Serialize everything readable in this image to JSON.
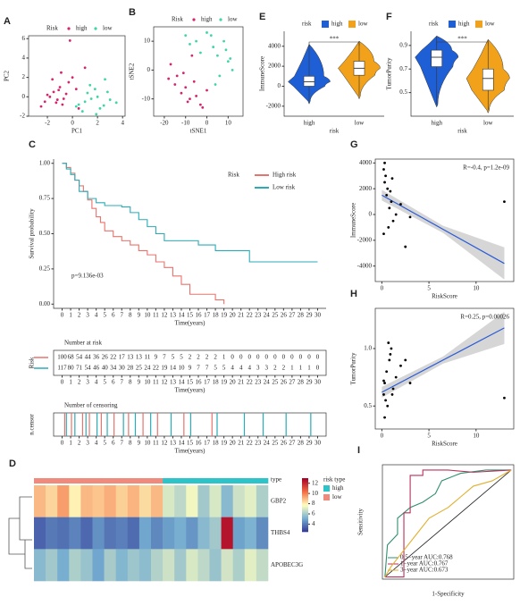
{
  "chart_data": [
    {
      "panel": "A",
      "type": "scatter",
      "legend_title": "Risk",
      "xlabel": "PC1",
      "ylabel": "PC2",
      "xlim": [
        -3.5,
        4.2
      ],
      "ylim": [
        -2,
        6.3
      ],
      "xticks": [
        -2,
        0,
        2,
        4
      ],
      "yticks": [
        -2,
        0,
        2,
        4,
        6
      ],
      "series": [
        {
          "name": "high",
          "color": "#d6246e",
          "x": [
            -2.2,
            -1.8,
            -1.5,
            -1.2,
            -1,
            -0.8,
            -0.5,
            -0.3,
            0,
            0.3,
            -2.5,
            -1.6,
            -0.9,
            -1.3,
            0.5,
            1,
            -0.2,
            -2,
            -0.7,
            -1.1
          ],
          "values": [
            -0.5,
            0,
            0.5,
            -0.3,
            1,
            -0.8,
            0.3,
            1.5,
            2,
            0.8,
            -1,
            1.8,
            2.5,
            -0.6,
            -1.2,
            3,
            5.8,
            0.2,
            -0.2,
            0.7
          ]
        },
        {
          "name": "low",
          "color": "#3ed6a8",
          "x": [
            0.5,
            1,
            1.5,
            2,
            2.5,
            3,
            1.2,
            1.8,
            2.2,
            0.8,
            1.4,
            2.8,
            3.5,
            0.3,
            2.6,
            1.9
          ],
          "values": [
            -0.8,
            -0.5,
            -0.2,
            0,
            -0.9,
            -0.3,
            0.4,
            0.8,
            -1.2,
            -1.5,
            1.2,
            0.5,
            -0.6,
            -1,
            1.8,
            -1.8
          ]
        }
      ]
    },
    {
      "panel": "B",
      "type": "scatter",
      "legend_title": "Risk",
      "xlabel": "tSNE1",
      "ylabel": "tSNE2",
      "xlim": [
        -25,
        17
      ],
      "ylim": [
        -16,
        15
      ],
      "xticks": [
        -20,
        -10,
        0,
        10
      ],
      "yticks": [
        -10,
        0,
        10
      ],
      "series": [
        {
          "name": "high",
          "color": "#d6246e",
          "x": [
            -18,
            -15,
            -12,
            -10,
            -8,
            -5,
            -3,
            0,
            -14,
            -6,
            -9,
            -2,
            -7,
            -17,
            -11
          ],
          "values": [
            -3,
            -5,
            -8,
            -6,
            -10,
            -9,
            -12,
            -7,
            -2,
            -4,
            -11,
            -13,
            5,
            2,
            -1
          ]
        },
        {
          "name": "low",
          "color": "#3ed6a8",
          "x": [
            -10,
            -5,
            0,
            3,
            5,
            8,
            10,
            12,
            -3,
            2,
            6,
            9,
            -8,
            4,
            11
          ],
          "values": [
            12,
            10,
            13,
            8,
            5,
            10,
            3,
            0,
            6,
            12,
            -2,
            7,
            9,
            -5,
            4
          ]
        }
      ]
    },
    {
      "panel": "E",
      "type": "violin",
      "legend_title": "risk",
      "xlabel": "risk",
      "ylabel": "ImmuneScore",
      "annotation": "***",
      "categories": [
        "high",
        "low"
      ],
      "ylim": [
        -3000,
        5500
      ],
      "yticks": [
        -2000,
        0,
        2000,
        4000
      ],
      "boxes": [
        {
          "color": "#1f5fd6",
          "min": -1500,
          "q1": 0,
          "median": 450,
          "q3": 1000,
          "max": 4200
        },
        {
          "color": "#f2a21a",
          "min": -1000,
          "q1": 1100,
          "median": 1800,
          "q3": 2500,
          "max": 4500
        }
      ]
    },
    {
      "panel": "F",
      "type": "violin",
      "legend_title": "risk",
      "xlabel": "risk",
      "ylabel": "TumorPurity",
      "annotation": "***",
      "categories": [
        "high",
        "low"
      ],
      "ylim": [
        0.3,
        1.02
      ],
      "yticks": [
        0.5,
        0.7,
        0.9
      ],
      "boxes": [
        {
          "color": "#1f5fd6",
          "min": 0.4,
          "q1": 0.72,
          "median": 0.8,
          "q3": 0.86,
          "max": 0.98
        },
        {
          "color": "#f2a21a",
          "min": 0.35,
          "q1": 0.52,
          "median": 0.62,
          "q3": 0.7,
          "max": 0.95
        }
      ]
    },
    {
      "panel": "C",
      "type": "line",
      "step": true,
      "legend_title": "Risk",
      "xlabel": "Time(years)",
      "ylabel": "Survival probability",
      "annotation": "p=9.136e-03",
      "xlim": [
        -1,
        31
      ],
      "ylim": [
        -0.03,
        1.03
      ],
      "xticks": [
        0,
        1,
        2,
        3,
        4,
        5,
        6,
        7,
        8,
        9,
        10,
        11,
        12,
        13,
        14,
        15,
        16,
        17,
        18,
        19,
        20,
        21,
        22,
        23,
        24,
        25,
        26,
        27,
        28,
        29,
        30
      ],
      "yticks": [
        {
          "value": 0,
          "label": "0.00"
        },
        {
          "value": 0.25,
          "label": "0.25"
        },
        {
          "value": 0.5,
          "label": "0.50"
        },
        {
          "value": 0.75,
          "label": "0.75"
        },
        {
          "value": 1,
          "label": "1.00"
        }
      ],
      "series": [
        {
          "name": "High risk",
          "color": "#e8736c",
          "x": [
            0,
            0.5,
            1,
            1.5,
            2,
            2.5,
            3,
            3.5,
            4,
            4.5,
            5,
            6,
            7,
            8,
            9,
            10,
            11,
            12,
            13,
            14,
            15,
            16,
            17,
            18,
            19
          ],
          "values": [
            1,
            0.97,
            0.93,
            0.88,
            0.84,
            0.8,
            0.74,
            0.68,
            0.62,
            0.58,
            0.52,
            0.48,
            0.45,
            0.42,
            0.38,
            0.35,
            0.3,
            0.26,
            0.2,
            0.14,
            0.07,
            0.07,
            0.07,
            0.03,
            0
          ]
        },
        {
          "name": "Low risk",
          "color": "#2aacb8",
          "x": [
            0,
            0.5,
            1,
            1.5,
            2,
            3,
            4,
            5,
            6,
            7,
            8,
            9,
            10,
            11,
            12,
            14,
            16,
            18,
            20,
            22,
            30
          ],
          "values": [
            1,
            0.96,
            0.92,
            0.88,
            0.8,
            0.75,
            0.72,
            0.7,
            0.7,
            0.69,
            0.65,
            0.6,
            0.55,
            0.5,
            0.45,
            0.45,
            0.42,
            0.38,
            0.38,
            0.3,
            0.3
          ]
        }
      ]
    },
    {
      "type": "table",
      "title": "Number at risk",
      "ylabel": "Risk",
      "xlabel": "Time(years)",
      "xlim": [
        -1,
        31
      ],
      "xticks": [
        0,
        1,
        2,
        3,
        4,
        5,
        6,
        7,
        8,
        9,
        10,
        11,
        12,
        13,
        14,
        15,
        16,
        17,
        18,
        19,
        20,
        21,
        22,
        23,
        24,
        25,
        26,
        27,
        28,
        29,
        30
      ],
      "rows": [
        {
          "color": "#e8736c",
          "values": [
            100,
            68,
            54,
            44,
            36,
            26,
            22,
            17,
            13,
            13,
            11,
            9,
            7,
            5,
            5,
            2,
            2,
            2,
            2,
            1,
            0,
            0,
            0,
            0,
            0,
            0,
            0,
            0,
            0,
            0,
            0
          ]
        },
        {
          "color": "#2aacb8",
          "values": [
            117,
            80,
            71,
            54,
            46,
            40,
            34,
            30,
            28,
            25,
            24,
            22,
            19,
            14,
            10,
            9,
            7,
            7,
            5,
            5,
            4,
            4,
            4,
            3,
            3,
            2,
            2,
            1,
            1,
            1,
            0
          ]
        }
      ]
    },
    {
      "type": "censor",
      "title": "Number of censoring",
      "ylabel": "n.censor",
      "xlabel": "Time(years)",
      "xlim": [
        -1,
        31
      ],
      "ylim": [
        0,
        1
      ],
      "xticks": [
        0,
        1,
        2,
        3,
        4,
        5,
        6,
        7,
        8,
        9,
        10,
        11,
        12,
        13,
        14,
        15,
        16,
        17,
        18,
        19,
        20,
        21,
        22,
        23,
        24,
        25,
        26,
        27,
        28,
        29,
        30
      ],
      "series": [
        {
          "color": "#e8736c",
          "x": [
            0.3,
            1.1,
            2.4,
            3.2,
            4.6,
            6.1,
            7.8,
            9.5,
            11.2,
            14.3,
            17.6
          ],
          "values": [
            1,
            1,
            1,
            1,
            1,
            1,
            1,
            1,
            1,
            1,
            1
          ]
        },
        {
          "color": "#2aacb8",
          "x": [
            0.5,
            1.5,
            2.8,
            4.1,
            5.3,
            7.2,
            8.6,
            10.4,
            12.8,
            15.1,
            18.2,
            21.4,
            23.6,
            26.3,
            29.2
          ],
          "values": [
            1,
            1,
            1,
            1,
            1,
            1,
            1,
            1,
            1,
            1,
            1,
            1,
            1,
            1,
            1
          ]
        }
      ]
    },
    {
      "panel": "G",
      "type": "scatter",
      "xlabel": "RiskScore",
      "ylabel": "ImmuneScore",
      "annotation": "R=-0.4, p=1.2e-09",
      "xlim": [
        -0.7,
        14
      ],
      "ylim": [
        -5200,
        4300
      ],
      "xticks": [
        0,
        5,
        10
      ],
      "yticks": [
        -4000,
        -2000,
        0,
        2000,
        4000
      ],
      "fit": {
        "x": [
          0,
          13
        ],
        "values": [
          1500,
          -3800
        ]
      },
      "series": [
        {
          "color": "#000000",
          "x": [
            0.2,
            0.3,
            0.5,
            0.6,
            0.8,
            1,
            1.2,
            1.5,
            0.4,
            0.7,
            2,
            3,
            0.3,
            0.9,
            1.1,
            2.5,
            0.2,
            13
          ],
          "values": [
            3500,
            2500,
            1500,
            2000,
            500,
            1000,
            -500,
            0,
            3000,
            -1000,
            800,
            -200,
            4000,
            1800,
            2800,
            -2500,
            -1500,
            1000
          ]
        }
      ]
    },
    {
      "panel": "H",
      "type": "scatter",
      "xlabel": "RiskScore",
      "ylabel": "TumorPurity",
      "annotation": "R=0.25, p=0.00026",
      "xlim": [
        -0.7,
        14
      ],
      "ylim": [
        0.3,
        1.35
      ],
      "xticks": [
        0,
        5,
        10
      ],
      "yticks": [
        0.5,
        {
          "value": 1,
          "label": "1.0"
        }
      ],
      "fit": {
        "x": [
          0,
          13
        ],
        "values": [
          0.62,
          1.18
        ]
      },
      "series": [
        {
          "color": "#000000",
          "x": [
            0.2,
            0.3,
            0.5,
            0.6,
            0.8,
            1,
            1.2,
            1.5,
            0.4,
            0.7,
            2,
            3,
            0.3,
            0.9,
            1.1,
            2.5,
            0.2,
            13
          ],
          "values": [
            0.6,
            0.7,
            0.8,
            0.5,
            0.9,
            1.0,
            0.65,
            0.75,
            0.55,
            1.05,
            0.85,
            0.7,
            0.4,
            0.95,
            0.6,
            0.9,
            0.72,
            0.57
          ]
        }
      ]
    },
    {
      "panel": "D",
      "type": "heatmap",
      "legend_title": "type",
      "type_title": "risk type",
      "type_names": [
        "high",
        "low"
      ],
      "type_colors": [
        "#2cc4c8",
        "#f08a7c"
      ],
      "genes": [
        "GBP2",
        "THBS4",
        "APOBEC3G"
      ],
      "clim": [
        2.5,
        13
      ],
      "cticks": [
        4,
        6,
        8,
        10,
        12
      ],
      "risk_type": [
        "low",
        "low",
        "low",
        "low",
        "low",
        "low",
        "low",
        "low",
        "low",
        "low",
        "low",
        "high",
        "high",
        "high",
        "high",
        "high",
        "high",
        "high",
        "high",
        "high"
      ],
      "matrix": [
        [
          9,
          8.5,
          9.5,
          8,
          9,
          8.8,
          9.2,
          8.6,
          9.1,
          8.4,
          9,
          7,
          6.5,
          7.5,
          6,
          7,
          5.5,
          6.8,
          7.2,
          6.2
        ],
        [
          3.5,
          4,
          3.8,
          4.2,
          3.6,
          4.5,
          3.9,
          4.1,
          3.7,
          5,
          4.3,
          4.8,
          5.2,
          4.6,
          5.5,
          6,
          12.5,
          4.9,
          5.3,
          4.4
        ],
        [
          5.5,
          6,
          5.2,
          6.2,
          5.8,
          5,
          6.1,
          5.4,
          5.9,
          5.6,
          6.3,
          6.8,
          6,
          7,
          6.5,
          5.8,
          6.9,
          6.2,
          7.2,
          6.6
        ]
      ]
    },
    {
      "panel": "I",
      "type": "line",
      "xlabel": "1-Specificity",
      "ylabel": "Sensitivity",
      "xlim": [
        -0.02,
        1.02
      ],
      "ylim": [
        -0.02,
        1.05
      ],
      "series": [
        {
          "name": "0.5−year AUC:0.768",
          "color": "#2f8f6f",
          "x": [
            0,
            0.02,
            0.1,
            0.1,
            0.2,
            0.3,
            0.4,
            0.45,
            0.6,
            0.8,
            1
          ],
          "values": [
            0,
            0.3,
            0.4,
            0.55,
            0.65,
            0.7,
            0.78,
            0.9,
            0.97,
            1,
            1
          ]
        },
        {
          "name": "1−year AUC:0.767",
          "color": "#b8305a",
          "x": [
            0,
            0.15,
            0.15,
            0.2,
            0.2,
            0.3,
            0.3,
            0.5,
            0.7,
            1
          ],
          "values": [
            0,
            0,
            0.6,
            0.6,
            0.95,
            0.95,
            1,
            1,
            0.98,
            1
          ]
        },
        {
          "name": "3−year AUC:0.673",
          "color": "#e0b030",
          "x": [
            0,
            0.05,
            0.15,
            0.25,
            0.35,
            0.5,
            0.6,
            0.7,
            0.85,
            1
          ],
          "values": [
            0,
            0.1,
            0.25,
            0.4,
            0.55,
            0.65,
            0.75,
            0.85,
            0.9,
            1
          ]
        }
      ]
    }
  ]
}
